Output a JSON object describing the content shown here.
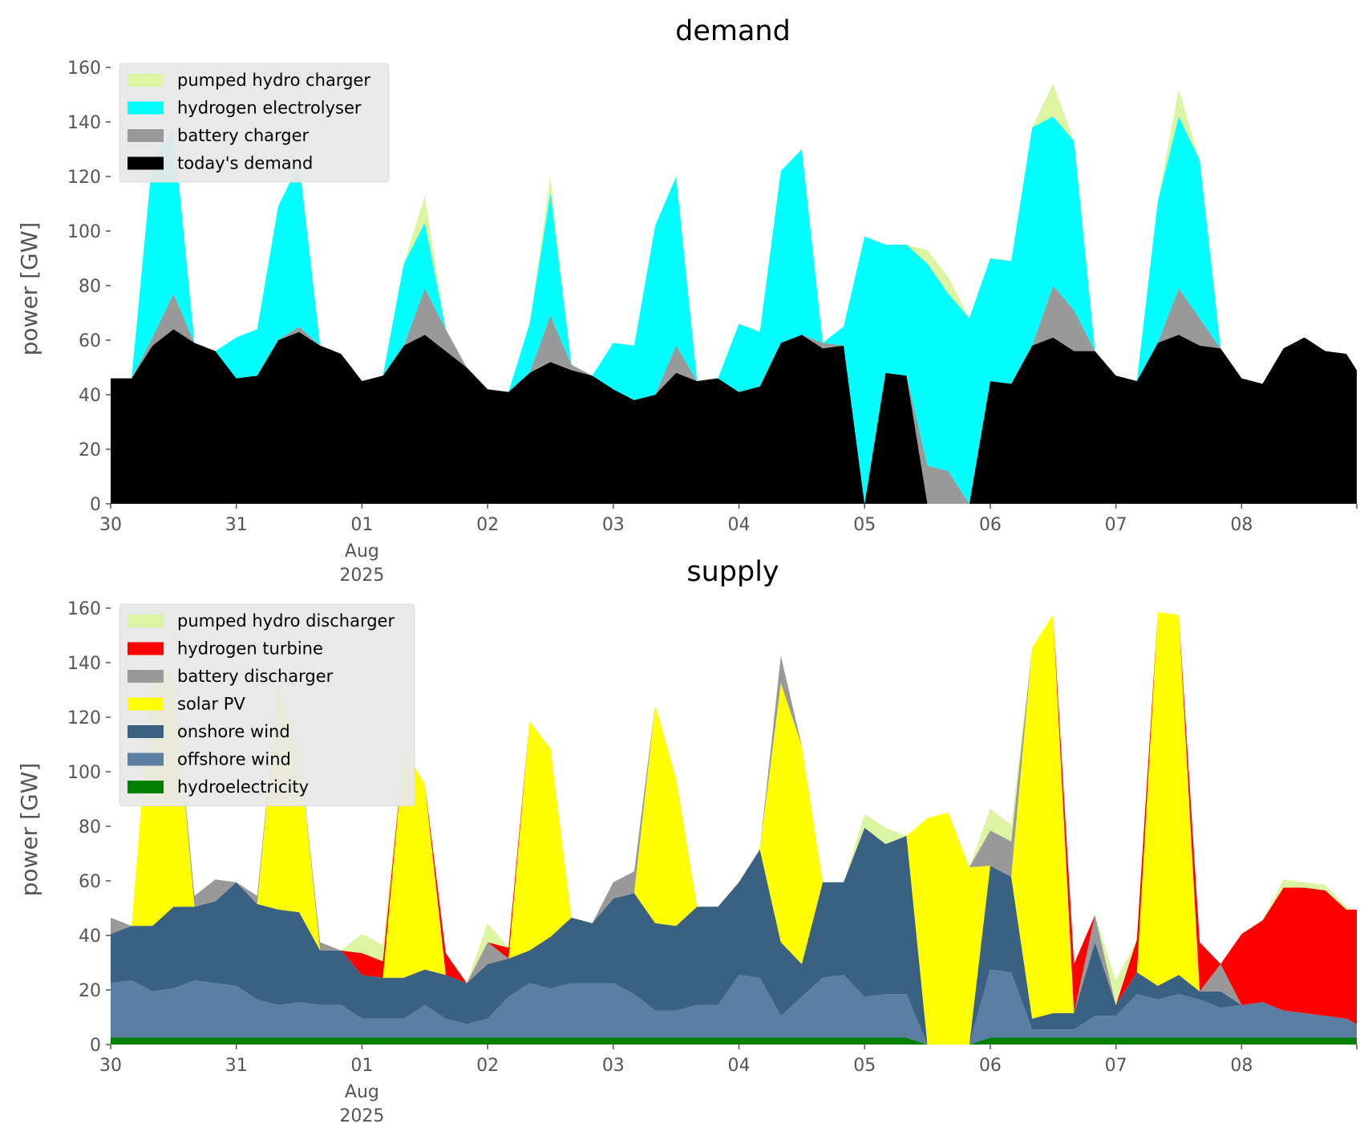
{
  "chart_data": [
    {
      "type": "area",
      "stacked": true,
      "title": "demand",
      "ylabel": "power [GW]",
      "ylim": [
        0,
        160
      ],
      "yticks": [
        0,
        20,
        40,
        60,
        80,
        100,
        120,
        140,
        160
      ],
      "xlim": [
        "2025-07-30",
        "2025-08-08T22:00"
      ],
      "xticks": [
        {
          "date": "2025-07-30",
          "label": "30"
        },
        {
          "date": "2025-07-31",
          "label": "31"
        },
        {
          "date": "2025-08-01",
          "label": "01",
          "sub1": "Aug",
          "sub2": "2025"
        },
        {
          "date": "2025-08-02",
          "label": "02"
        },
        {
          "date": "2025-08-03",
          "label": "03"
        },
        {
          "date": "2025-08-04",
          "label": "04"
        },
        {
          "date": "2025-08-05",
          "label": "05"
        },
        {
          "date": "2025-08-06",
          "label": "06"
        },
        {
          "date": "2025-08-07",
          "label": "07"
        },
        {
          "date": "2025-08-08",
          "label": "08"
        }
      ],
      "grid": false,
      "legend_position": "top-left",
      "x": [
        "2025-07-30T00:00",
        "2025-07-30T04:00",
        "2025-07-30T08:00",
        "2025-07-30T12:00",
        "2025-07-30T16:00",
        "2025-07-30T20:00",
        "2025-07-31T00:00",
        "2025-07-31T04:00",
        "2025-07-31T08:00",
        "2025-07-31T12:00",
        "2025-07-31T16:00",
        "2025-07-31T20:00",
        "2025-08-01T00:00",
        "2025-08-01T04:00",
        "2025-08-01T08:00",
        "2025-08-01T12:00",
        "2025-08-01T16:00",
        "2025-08-01T20:00",
        "2025-08-02T00:00",
        "2025-08-02T04:00",
        "2025-08-02T08:00",
        "2025-08-02T12:00",
        "2025-08-02T16:00",
        "2025-08-02T20:00",
        "2025-08-03T00:00",
        "2025-08-03T04:00",
        "2025-08-03T08:00",
        "2025-08-03T12:00",
        "2025-08-03T16:00",
        "2025-08-03T20:00",
        "2025-08-04T00:00",
        "2025-08-04T04:00",
        "2025-08-04T08:00",
        "2025-08-04T12:00",
        "2025-08-04T16:00",
        "2025-08-04T20:00",
        "2025-08-05T00:00",
        "2025-08-05T04:00",
        "2025-08-05T08:00",
        "2025-08-05T12:00",
        "2025-08-05T16:00",
        "2025-08-05T20:00",
        "2025-08-06T00:00",
        "2025-08-06T04:00",
        "2025-08-06T08:00",
        "2025-08-06T12:00",
        "2025-08-06T16:00",
        "2025-08-06T20:00",
        "2025-08-07T00:00",
        "2025-08-07T04:00",
        "2025-08-07T08:00",
        "2025-08-07T12:00",
        "2025-08-07T16:00",
        "2025-08-07T20:00",
        "2025-08-08T00:00",
        "2025-08-08T04:00",
        "2025-08-08T08:00",
        "2025-08-08T12:00",
        "2025-08-08T16:00",
        "2025-08-08T20:00",
        "2025-08-08T22:00"
      ],
      "series": [
        {
          "name": "today's demand",
          "color": "#000000",
          "values": [
            46,
            46,
            58,
            64,
            59,
            56,
            46,
            47,
            60,
            63,
            58,
            55,
            45,
            47,
            58,
            62,
            56,
            50,
            42,
            41,
            48,
            52,
            49,
            47,
            42,
            38,
            40,
            48,
            45,
            46,
            41,
            43,
            59,
            62,
            57,
            58,
            0,
            48,
            47,
            0,
            0,
            0,
            45,
            44,
            58,
            61,
            56,
            56,
            47,
            45,
            59,
            62,
            58,
            57,
            46,
            44,
            57,
            61,
            56,
            55,
            49
          ]
        },
        {
          "name": "battery charger",
          "color": "#999999",
          "values": [
            0,
            0,
            3,
            13,
            0,
            0,
            0,
            0,
            0,
            2,
            0,
            0,
            0,
            0,
            0,
            17,
            8,
            0,
            0,
            0,
            0,
            17,
            2,
            0,
            0,
            0,
            0,
            10,
            0,
            0,
            0,
            0,
            0,
            0,
            2,
            0,
            0,
            0,
            0,
            14,
            12,
            0,
            0,
            0,
            0,
            19,
            15,
            0,
            0,
            0,
            0,
            17,
            10,
            0,
            0,
            0,
            0,
            0,
            0,
            0,
            0
          ]
        },
        {
          "name": "hydrogen electrolyser",
          "color": "#00ffff",
          "values": [
            0,
            0,
            66,
            60,
            0,
            0,
            15,
            17,
            49,
            60,
            0,
            0,
            0,
            0,
            30,
            24,
            0,
            0,
            0,
            0,
            18,
            45,
            0,
            0,
            17,
            20,
            62,
            62,
            0,
            0,
            25,
            20,
            63,
            68,
            0,
            7,
            98,
            47,
            48,
            74,
            65,
            68,
            45,
            45,
            80,
            62,
            62,
            0,
            0,
            0,
            52,
            63,
            58,
            0,
            0,
            0,
            0,
            0,
            0,
            0,
            0
          ]
        },
        {
          "name": "pumped hydro charger",
          "color": "#dcf5a3",
          "values": [
            0,
            0,
            0,
            0,
            0,
            0,
            0,
            0,
            0,
            0,
            0,
            0,
            0,
            0,
            0,
            10,
            0,
            0,
            0,
            0,
            0,
            6,
            0,
            0,
            0,
            0,
            0,
            0,
            0,
            0,
            0,
            0,
            0,
            0,
            0,
            0,
            0,
            0,
            0,
            5,
            6,
            0,
            0,
            0,
            0,
            12,
            0,
            0,
            0,
            0,
            0,
            10,
            0,
            0,
            0,
            0,
            0,
            0,
            0,
            0,
            0
          ]
        }
      ],
      "legend": [
        "pumped hydro charger",
        "hydrogen electrolyser",
        "battery charger",
        "today's demand"
      ]
    },
    {
      "type": "area",
      "stacked": true,
      "title": "supply",
      "ylabel": "power [GW]",
      "ylim": [
        0,
        160
      ],
      "yticks": [
        0,
        20,
        40,
        60,
        80,
        100,
        120,
        140,
        160
      ],
      "xlim": [
        "2025-07-30",
        "2025-08-08T22:00"
      ],
      "xticks": [
        {
          "date": "2025-07-30",
          "label": "30"
        },
        {
          "date": "2025-07-31",
          "label": "31"
        },
        {
          "date": "2025-08-01",
          "label": "01",
          "sub1": "Aug",
          "sub2": "2025"
        },
        {
          "date": "2025-08-02",
          "label": "02"
        },
        {
          "date": "2025-08-03",
          "label": "03"
        },
        {
          "date": "2025-08-04",
          "label": "04"
        },
        {
          "date": "2025-08-05",
          "label": "05"
        },
        {
          "date": "2025-08-06",
          "label": "06"
        },
        {
          "date": "2025-08-07",
          "label": "07"
        },
        {
          "date": "2025-08-08",
          "label": "08"
        }
      ],
      "grid": false,
      "legend_position": "top-left",
      "x": [
        "2025-07-30T00:00",
        "2025-07-30T04:00",
        "2025-07-30T08:00",
        "2025-07-30T12:00",
        "2025-07-30T16:00",
        "2025-07-30T20:00",
        "2025-07-31T00:00",
        "2025-07-31T04:00",
        "2025-07-31T08:00",
        "2025-07-31T12:00",
        "2025-07-31T16:00",
        "2025-07-31T20:00",
        "2025-08-01T00:00",
        "2025-08-01T04:00",
        "2025-08-01T08:00",
        "2025-08-01T12:00",
        "2025-08-01T16:00",
        "2025-08-01T20:00",
        "2025-08-02T00:00",
        "2025-08-02T04:00",
        "2025-08-02T08:00",
        "2025-08-02T12:00",
        "2025-08-02T16:00",
        "2025-08-02T20:00",
        "2025-08-03T00:00",
        "2025-08-03T04:00",
        "2025-08-03T08:00",
        "2025-08-03T12:00",
        "2025-08-03T16:00",
        "2025-08-03T20:00",
        "2025-08-04T00:00",
        "2025-08-04T04:00",
        "2025-08-04T08:00",
        "2025-08-04T12:00",
        "2025-08-04T16:00",
        "2025-08-04T20:00",
        "2025-08-05T00:00",
        "2025-08-05T04:00",
        "2025-08-05T08:00",
        "2025-08-05T12:00",
        "2025-08-05T16:00",
        "2025-08-05T20:00",
        "2025-08-06T00:00",
        "2025-08-06T04:00",
        "2025-08-06T08:00",
        "2025-08-06T12:00",
        "2025-08-06T16:00",
        "2025-08-06T20:00",
        "2025-08-07T00:00",
        "2025-08-07T04:00",
        "2025-08-07T08:00",
        "2025-08-07T12:00",
        "2025-08-07T16:00",
        "2025-08-07T20:00",
        "2025-08-08T00:00",
        "2025-08-08T04:00",
        "2025-08-08T08:00",
        "2025-08-08T12:00",
        "2025-08-08T16:00",
        "2025-08-08T20:00",
        "2025-08-08T22:00"
      ],
      "series": [
        {
          "name": "hydroelectricity",
          "color": "#008000",
          "values": [
            2.5,
            2.5,
            2.5,
            2.5,
            2.5,
            2.5,
            2.5,
            2.5,
            2.5,
            2.5,
            2.5,
            2.5,
            2.5,
            2.5,
            2.5,
            2.5,
            2.5,
            2.5,
            2.5,
            2.5,
            2.5,
            2.5,
            2.5,
            2.5,
            2.5,
            2.5,
            2.5,
            2.5,
            2.5,
            2.5,
            2.5,
            2.5,
            2.5,
            2.5,
            2.5,
            2.5,
            2.5,
            2.5,
            2.5,
            0,
            0,
            0,
            2.5,
            2.5,
            2.5,
            2.5,
            2.5,
            2.5,
            2.5,
            2.5,
            2.5,
            2.5,
            2.5,
            2.5,
            2.5,
            2.5,
            2.5,
            2.5,
            2.5,
            2.5,
            2.5
          ]
        },
        {
          "name": "offshore wind",
          "color": "#5b7fa3",
          "values": [
            20,
            21,
            17,
            18,
            21,
            20,
            19,
            14,
            12,
            13,
            12,
            12,
            7,
            7,
            7,
            12,
            7,
            5,
            7,
            15,
            20,
            18,
            20,
            20,
            20,
            16,
            10,
            10,
            12,
            12,
            23,
            22,
            8,
            15,
            22,
            23,
            15,
            16,
            16,
            0,
            0,
            0,
            25,
            24,
            3,
            3,
            3,
            8,
            8,
            16,
            14,
            16,
            14,
            11,
            12,
            13,
            10,
            9,
            8,
            7,
            5
          ]
        },
        {
          "name": "onshore wind",
          "color": "#3b6182",
          "values": [
            18,
            20,
            24,
            30,
            27,
            30,
            38,
            35,
            35,
            33,
            20,
            20,
            16,
            15,
            15,
            13,
            16,
            15,
            20,
            14,
            12,
            19,
            24,
            22,
            31,
            37,
            32,
            31,
            36,
            36,
            34,
            47,
            27,
            12,
            35,
            34,
            62,
            55,
            58,
            0,
            0,
            0,
            38,
            35,
            4,
            6,
            6,
            27,
            4,
            8,
            5,
            7,
            3,
            6,
            0,
            0,
            0,
            0,
            0,
            0,
            0
          ]
        },
        {
          "name": "solar PV",
          "color": "#ffff00",
          "values": [
            0,
            0,
            95,
            85,
            0,
            0,
            0,
            0,
            83,
            60,
            0,
            0,
            0,
            0,
            84,
            68,
            0,
            0,
            0,
            0,
            84,
            69,
            0,
            0,
            0,
            0,
            80,
            54,
            0,
            0,
            0,
            0,
            95,
            80,
            0,
            0,
            0,
            0,
            0,
            83,
            85,
            65,
            0,
            0,
            136,
            146,
            0,
            0,
            0,
            0,
            137,
            132,
            0,
            0,
            0,
            0,
            0,
            0,
            0,
            0,
            0
          ]
        },
        {
          "name": "battery discharger",
          "color": "#999999",
          "values": [
            6,
            0,
            0,
            0,
            4,
            8,
            0,
            3,
            0,
            0,
            3,
            0,
            0,
            0,
            0,
            0,
            0,
            0,
            8,
            0,
            0,
            0,
            0,
            0,
            6,
            8,
            0,
            0,
            0,
            0,
            0,
            0,
            10,
            0,
            0,
            0,
            0,
            0,
            0,
            0,
            0,
            0,
            13,
            13,
            0,
            0,
            0,
            10,
            0,
            0,
            0,
            0,
            0,
            10,
            0,
            0,
            0,
            0,
            0,
            0,
            0
          ]
        },
        {
          "name": "hydrogen turbine",
          "color": "#ff0000",
          "values": [
            0,
            0,
            0,
            0,
            0,
            0,
            0,
            0,
            0,
            0,
            0,
            0,
            8,
            6,
            0,
            0,
            8,
            0,
            0,
            4,
            0,
            0,
            0,
            0,
            0,
            0,
            0,
            0,
            0,
            0,
            0,
            0,
            0,
            0,
            0,
            0,
            0,
            0,
            0,
            0,
            0,
            0,
            0,
            0,
            0,
            0,
            18,
            0,
            0,
            12,
            0,
            0,
            18,
            0,
            26,
            30,
            45,
            46,
            46,
            40,
            42
          ]
        },
        {
          "name": "pumped hydro discharger",
          "color": "#dcf5a3",
          "values": [
            0,
            0,
            0,
            0,
            0,
            0,
            0,
            0,
            0,
            0,
            0,
            0,
            7,
            6,
            0,
            0,
            0,
            0,
            7,
            0,
            0,
            0,
            0,
            0,
            0,
            0,
            0,
            0,
            0,
            0,
            0,
            0,
            0,
            0,
            0,
            0,
            5,
            6,
            0,
            0,
            0,
            0,
            8,
            6,
            0,
            0,
            0,
            0,
            9,
            0,
            0,
            0,
            0,
            0,
            0,
            0,
            3,
            2,
            2,
            1,
            0
          ]
        }
      ],
      "legend": [
        "pumped hydro discharger",
        "hydrogen turbine",
        "battery discharger",
        "solar PV",
        "onshore wind",
        "offshore wind",
        "hydroelectricity"
      ]
    }
  ]
}
